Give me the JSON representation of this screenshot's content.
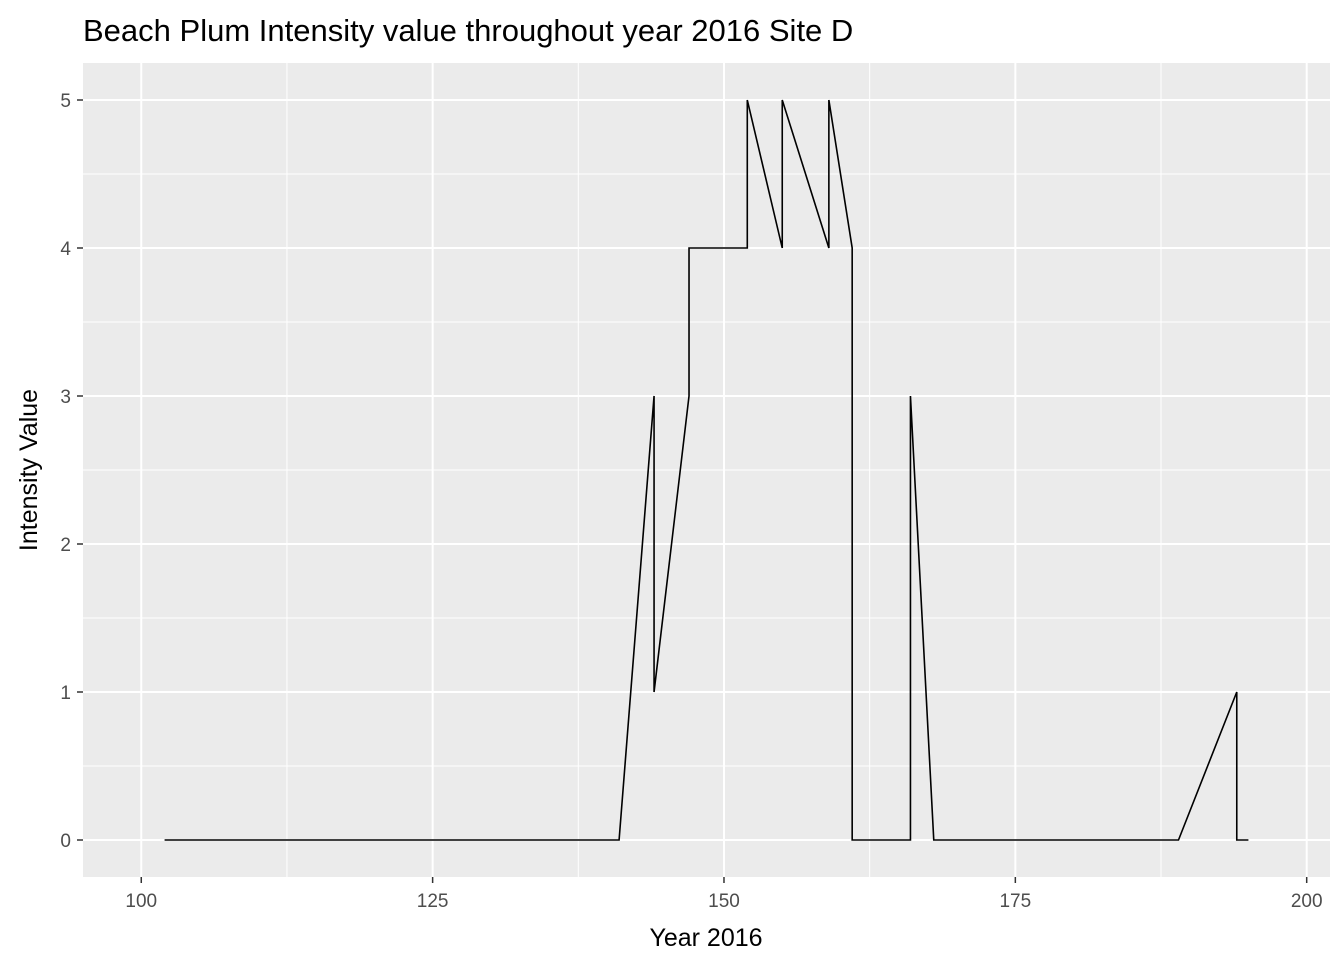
{
  "chart_data": {
    "type": "line",
    "title": "Beach Plum Intensity value throughout year 2016 Site D",
    "xlabel": "Year 2016",
    "ylabel": "Intensity Value",
    "xlim": [
      95,
      202
    ],
    "ylim": [
      -0.25,
      5.25
    ],
    "xticks": [
      100,
      125,
      150,
      175,
      200
    ],
    "yticks": [
      0,
      1,
      2,
      3,
      4,
      5
    ],
    "grid": true,
    "legend": "none",
    "colors": {
      "panel": "#ebebeb",
      "grid": "#ffffff",
      "line": "#000000",
      "tick_text": "#4d4d4d"
    },
    "series": [
      {
        "x": [
          102,
          141,
          144,
          144,
          147,
          147,
          152,
          152,
          155,
          155,
          159,
          159,
          161,
          161,
          166,
          166,
          168,
          189,
          194,
          194,
          195
        ],
        "y": [
          0,
          0,
          3,
          1,
          3,
          4,
          4,
          5,
          4,
          5,
          4,
          5,
          4,
          0,
          0,
          3,
          0,
          0,
          1,
          0,
          0
        ]
      }
    ]
  }
}
